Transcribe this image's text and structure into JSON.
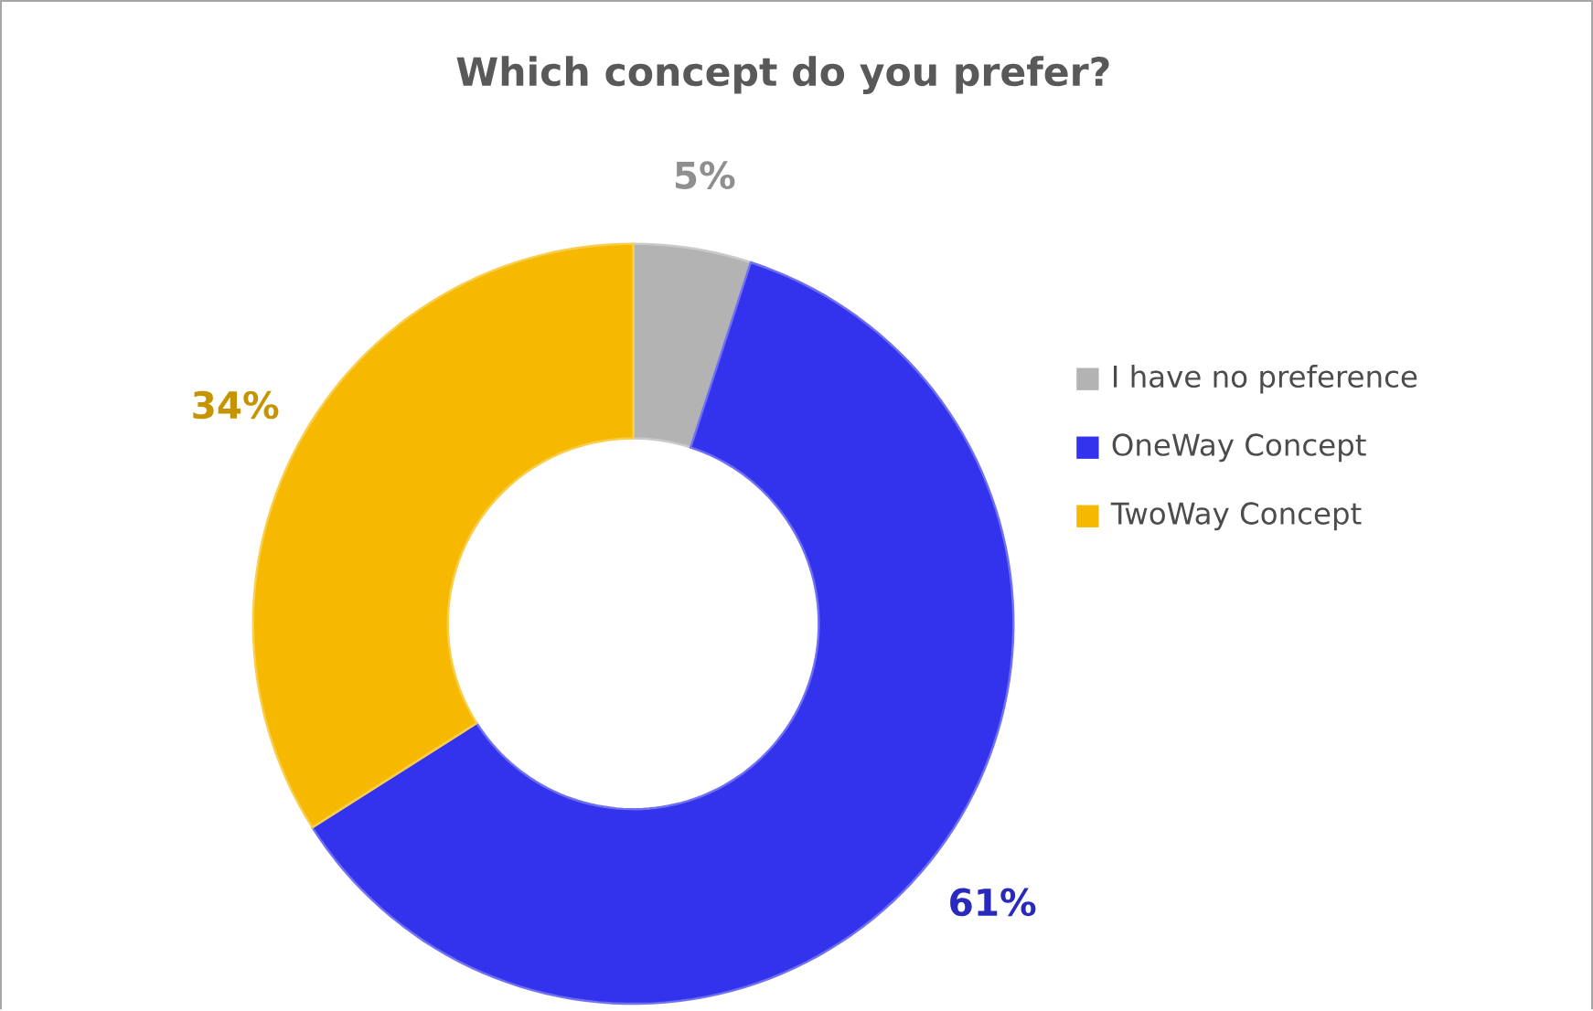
{
  "chart_data": {
    "type": "donut",
    "title": "Which concept do you prefer?",
    "categories": [
      "I have no preference",
      "OneWay Concept",
      "TwoWay Concept"
    ],
    "values": [
      5,
      61,
      34
    ],
    "value_labels": [
      "5%",
      "61%",
      "34%"
    ],
    "colors": [
      "#b3b3b3",
      "#3333ee",
      "#f7b900"
    ],
    "legend": "right"
  }
}
